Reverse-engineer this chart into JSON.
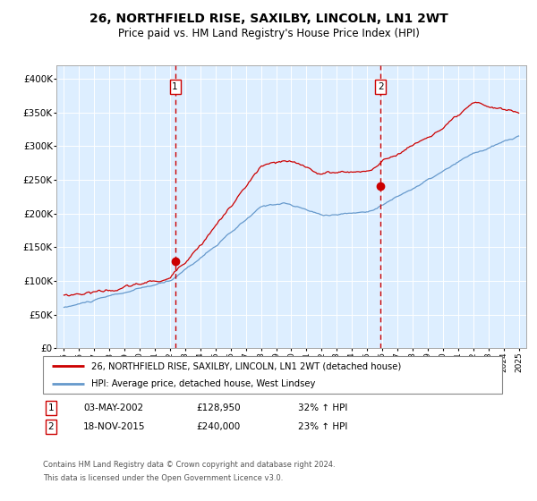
{
  "title": "26, NORTHFIELD RISE, SAXILBY, LINCOLN, LN1 2WT",
  "subtitle": "Price paid vs. HM Land Registry's House Price Index (HPI)",
  "legend_line1": "26, NORTHFIELD RISE, SAXILBY, LINCOLN, LN1 2WT (detached house)",
  "legend_line2": "HPI: Average price, detached house, West Lindsey",
  "transaction1_date": "03-MAY-2002",
  "transaction1_price": 128950,
  "transaction1_hpi": "32% ↑ HPI",
  "transaction1_year": 2002.33,
  "transaction2_date": "18-NOV-2015",
  "transaction2_price": 240000,
  "transaction2_hpi": "23% ↑ HPI",
  "transaction2_year": 2015.88,
  "red_color": "#cc0000",
  "blue_color": "#6699cc",
  "bg_color": "#ddeeff",
  "marker_color": "#cc0000",
  "dashed_color": "#cc0000",
  "box_color": "#cc0000",
  "footnote1": "Contains HM Land Registry data © Crown copyright and database right 2024.",
  "footnote2": "This data is licensed under the Open Government Licence v3.0."
}
